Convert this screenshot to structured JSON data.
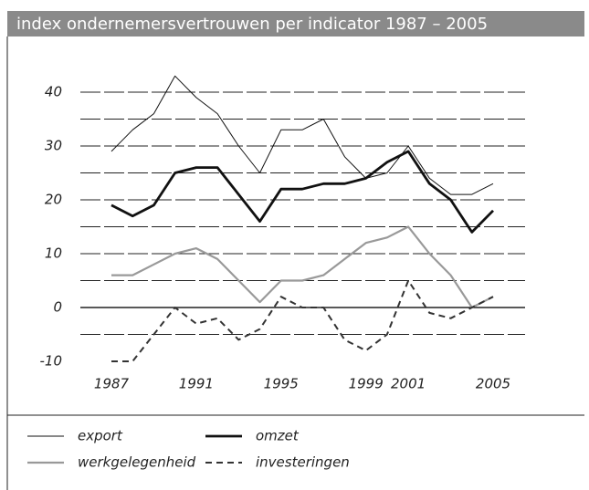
{
  "chart_data": {
    "type": "line",
    "title": "index ondernemersvertrouwen per indicator 1987 – 2005",
    "x": [
      1987,
      1988,
      1989,
      1990,
      1991,
      1992,
      1993,
      1994,
      1995,
      1996,
      1997,
      1998,
      1999,
      2000,
      2001,
      2002,
      2003,
      2004,
      2005
    ],
    "xlim": [
      1987,
      2005
    ],
    "xticks": [
      1987,
      1991,
      1995,
      1999,
      2001,
      2005
    ],
    "ylim": [
      -10,
      43
    ],
    "yticks": [
      -10,
      0,
      10,
      20,
      30,
      40
    ],
    "minor_yticks": [
      -5,
      5,
      15,
      25,
      35
    ],
    "grid": true,
    "series": [
      {
        "name": "export",
        "color": "#111",
        "width": 1,
        "dash": false,
        "values": [
          29,
          33,
          36,
          43,
          39,
          36,
          30,
          25,
          33,
          33,
          35,
          28,
          24,
          25,
          30,
          24,
          21,
          21,
          23
        ]
      },
      {
        "name": "omzet",
        "color": "#111",
        "width": 2.8,
        "dash": false,
        "values": [
          19,
          17,
          19,
          25,
          26,
          26,
          21,
          16,
          22,
          22,
          23,
          23,
          24,
          27,
          29,
          23,
          20,
          14,
          18
        ]
      },
      {
        "name": "werkgelegenheid",
        "color": "#999",
        "width": 2.2,
        "dash": false,
        "values": [
          6,
          6,
          8,
          10,
          11,
          9,
          5,
          1,
          5,
          5,
          6,
          9,
          12,
          13,
          15,
          10,
          6,
          0,
          2
        ]
      },
      {
        "name": "investeringen",
        "color": "#333",
        "width": 2,
        "dash": true,
        "values": [
          -10,
          -10,
          -5,
          0,
          -3,
          -2,
          -6,
          -4,
          2,
          0,
          0,
          -6,
          -8,
          -5,
          5,
          -1,
          -2,
          0,
          2
        ]
      }
    ]
  }
}
